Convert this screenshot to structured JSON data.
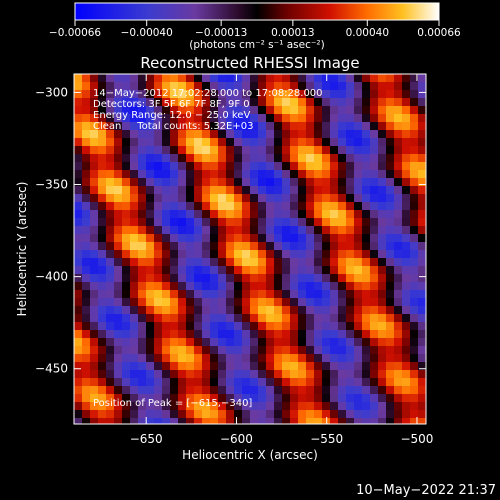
{
  "chart_data": {
    "type": "heatmap",
    "title": "Reconstructed RHESSI Image",
    "xlabel": "Heliocentric X (arcsec)",
    "ylabel": "Heliocentric Y (arcsec)",
    "xlim": [
      -690,
      -495
    ],
    "ylim": [
      -480,
      -290
    ],
    "x_ticks": [
      -650,
      -600,
      -550,
      -500
    ],
    "y_ticks": [
      -300,
      -350,
      -400,
      -450
    ],
    "x_tick_labels": [
      "−650",
      "−600",
      "−550",
      "−500"
    ],
    "y_tick_labels": [
      "−300",
      "−350",
      "−400",
      "−450"
    ],
    "colorbar": {
      "min": -0.00066,
      "max": 0.00066,
      "ticks": [
        -0.00066,
        -0.0004,
        -0.00013,
        0.00013,
        0.0004,
        0.00066
      ],
      "tick_labels": [
        "−0.00066",
        "−0.00040",
        "−0.00013",
        "0.00013",
        "0.00040",
        "0.00066"
      ],
      "units_label": "(photons cm⁻² s⁻¹ asec⁻²)"
    },
    "annotations": [
      "14−May−2012 17:02:28.000 to 17:08:28.000",
      "Detectors: 3F 5F 6F 7F 8F, 9F 0",
      "Energy Range: 12.0 − 25.0 keV",
      "Clean     Total counts: 5.32E+03"
    ],
    "peak_label": "Position of Peak = [−615,−340]",
    "peak_position": [
      -615,
      -340
    ],
    "grid": false
  },
  "footer": {
    "timestamp": "10−May−2022 21:37"
  },
  "colors": {
    "background": "#000000",
    "foreground": "#ffffff",
    "colormap": [
      "#0000ff",
      "#1f1fb8",
      "#4a2aa6",
      "#5c2f8e",
      "#2a0a2a",
      "#000000",
      "#550000",
      "#b40000",
      "#ff2a00",
      "#ff8c00",
      "#ffd020",
      "#ffffff"
    ]
  }
}
